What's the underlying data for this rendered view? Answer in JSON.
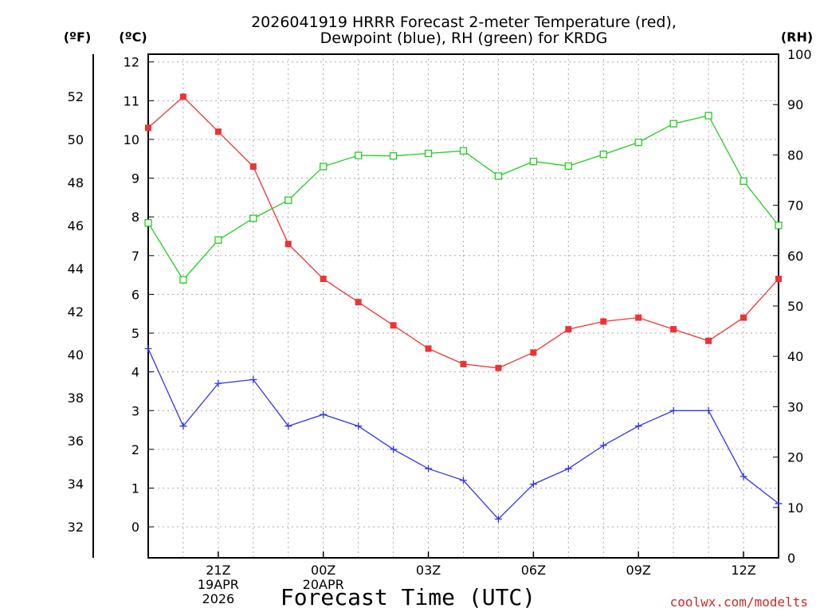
{
  "chart_data": {
    "type": "line",
    "title_lines": [
      "2026041919 HRRR Forecast 2-meter Temperature (red),",
      "Dewpoint (blue), RH (green) for KRDG"
    ],
    "xlabel": "Forecast Time (UTC)",
    "credit": "coolwx.com/modelts",
    "units": {
      "fahrenheit": "(ºF)",
      "celsius": "(ºC)",
      "rh": "(RH)"
    },
    "x_hours": [
      19,
      20,
      21,
      22,
      23,
      24,
      25,
      26,
      27,
      28,
      29,
      30,
      31,
      32,
      33,
      34,
      35,
      36,
      37
    ],
    "xlim": [
      19,
      37
    ],
    "x_ticks": [
      {
        "hour": 21,
        "lines": [
          "21Z",
          "19APR",
          "2026"
        ]
      },
      {
        "hour": 24,
        "lines": [
          "00Z",
          "20APR"
        ]
      },
      {
        "hour": 27,
        "lines": [
          "03Z"
        ]
      },
      {
        "hour": 30,
        "lines": [
          "06Z"
        ]
      },
      {
        "hour": 33,
        "lines": [
          "09Z"
        ]
      },
      {
        "hour": 36,
        "lines": [
          "12Z"
        ]
      }
    ],
    "ylim_celsius": [
      -0.8,
      12.2
    ],
    "celsius_ticks": [
      "0",
      "1",
      "2",
      "3",
      "4",
      "5",
      "6",
      "7",
      "8",
      "9",
      "10",
      "11",
      "12"
    ],
    "fahrenheit_ticks": [
      "32",
      "34",
      "36",
      "38",
      "40",
      "42",
      "44",
      "46",
      "48",
      "50",
      "52"
    ],
    "ylim_rh": [
      0,
      100
    ],
    "rh_ticks": [
      "0",
      "10",
      "20",
      "30",
      "40",
      "50",
      "60",
      "70",
      "80",
      "90",
      "100"
    ],
    "series": [
      {
        "name": "Temperature",
        "axis": "celsius",
        "color": "#ee3333",
        "marker": "filled-square",
        "values": [
          10.3,
          11.1,
          10.2,
          9.3,
          7.3,
          6.4,
          5.8,
          5.2,
          4.6,
          4.2,
          4.1,
          4.5,
          5.1,
          5.3,
          5.4,
          5.1,
          4.8,
          5.4,
          6.4
        ]
      },
      {
        "name": "Dewpoint",
        "axis": "celsius",
        "color": "#3333ee",
        "marker": "plus",
        "values": [
          4.6,
          2.6,
          3.7,
          3.8,
          2.6,
          2.9,
          2.6,
          2.0,
          1.5,
          1.2,
          0.2,
          1.1,
          1.5,
          2.1,
          2.6,
          3.0,
          3.0,
          1.3,
          0.6
        ]
      },
      {
        "name": "RH",
        "axis": "rh",
        "color": "#22cc22",
        "marker": "open-square",
        "values": [
          66.5,
          55.2,
          63.1,
          67.4,
          71.0,
          77.7,
          79.9,
          79.8,
          80.3,
          80.8,
          75.8,
          78.7,
          77.8,
          80.1,
          82.5,
          86.2,
          87.8,
          74.8,
          66.0
        ]
      }
    ]
  }
}
